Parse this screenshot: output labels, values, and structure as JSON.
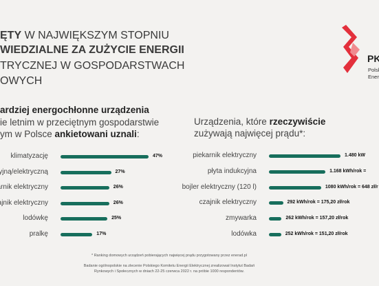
{
  "header": {
    "line1_bold": "ĘTY",
    "line1_rest": " W NAJWIĘKSZYM STOPNIU",
    "line2": "WIEDZIALNE ZA ZUŻYCIE ENERGII",
    "line3": "TRYCZNEJ W GOSPODARSTWACH",
    "line4": "OWYCH"
  },
  "logo": {
    "abbr": "PK",
    "sub1": "Polsk",
    "sub2": "Energ",
    "color": "#e3303c"
  },
  "left": {
    "title": "ardziej energochłonne urządzenia",
    "sub_line1": "ie letnim w przeciętnym gospodarstwie",
    "sub_line2_pre": "ym w Polsce ",
    "sub_line2_bold": "ankietowani uznali",
    "sub_line2_post": ":"
  },
  "right": {
    "title_pre": "Urządzenia, które ",
    "title_bold": "rzeczywiście",
    "title_line2": "zużywają najwięcej prądu*:"
  },
  "chart_data": [
    {
      "type": "bar",
      "orientation": "horizontal",
      "categories": [
        "klimatyzację",
        "yjną/elektryczną",
        "arnik elektryczny",
        "ajnik elektryczny",
        "lodówkę",
        "pralkę"
      ],
      "values": [
        47,
        27,
        26,
        26,
        25,
        17
      ],
      "value_labels": [
        "47%",
        "27%",
        "26%",
        "26%",
        "25%",
        "17%"
      ],
      "unit": "%",
      "bar_color": "#176e5c"
    },
    {
      "type": "bar",
      "orientation": "horizontal",
      "categories": [
        "piekarnik elektryczny",
        "płyta indukcyjna",
        "bojler elektryczny (120 l)",
        "czajnik elektryczny",
        "zmywarka",
        "lodówka"
      ],
      "values": [
        1480,
        1168,
        1080,
        292,
        262,
        252
      ],
      "value_labels": [
        "1.480 kW",
        "1.168 kWh/rok =",
        "1080 kWh/rok = 648 zł/r",
        "292 kWh/rok = 175,20 zł/rok",
        "262 kWh/rok = 157,20 zł/rok",
        "252 kWh/rok = 151,20 zł/rok"
      ],
      "unit": "kWh/rok",
      "bar_color": "#176e5c"
    }
  ],
  "footnote": {
    "line1": "* Ranking domowych urządzeń pobierających najwięcej prądu przygotowany przez enerad.pl",
    "line2": "Badanie ogólnopolskie na zlecenie Polskiego Komitetu Energii Elektrycznej zrealizował Instytut Badań Rynkowych i Społecznych w dniach 22-25 czerwca 2022 r. na próbie 1000 respondentów."
  }
}
